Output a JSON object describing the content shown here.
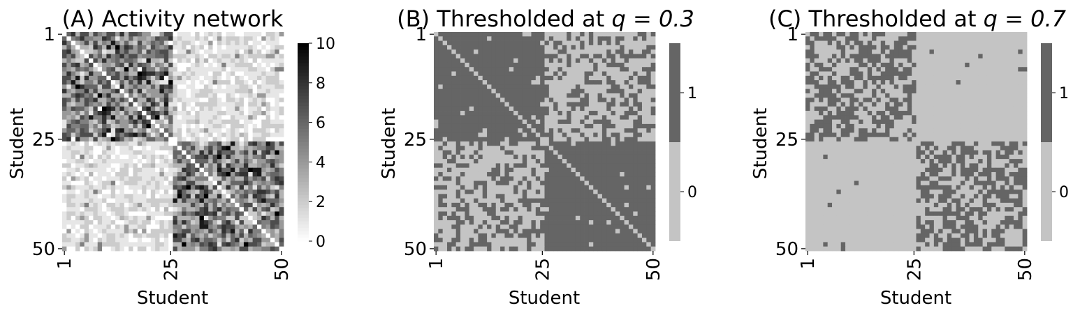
{
  "figure": {
    "background": "#ffffff",
    "n_students": 50,
    "block_split": 25
  },
  "chart_data": [
    {
      "type": "heatmap",
      "id": "A",
      "title": "(A) Activity network",
      "title_math": "",
      "xlabel": "Student",
      "ylabel": "Student",
      "x_ticks": [
        "1",
        "25",
        "50"
      ],
      "y_ticks": [
        "1",
        "25",
        "50"
      ],
      "colormap": "Greys",
      "value_range": [
        0,
        10
      ],
      "colorbar": {
        "ticks": [
          "0",
          "2",
          "4",
          "6",
          "8",
          "10"
        ],
        "tick_values": [
          0,
          2,
          4,
          6,
          8,
          10
        ]
      },
      "description_of_values": "50x50 symmetric matrix; within-block (1-25, 26-50) values mostly 3-8 with peaks up to 10, between-block values mostly 0-2"
    },
    {
      "type": "heatmap",
      "id": "B",
      "title": "(B) Thresholded at ",
      "title_math": "q = 0.3",
      "xlabel": "Student",
      "ylabel": "Student",
      "x_ticks": [
        "1",
        "25",
        "50"
      ],
      "y_ticks": [
        "1",
        "25",
        "50"
      ],
      "threshold_q": 0.3,
      "levels": [
        0,
        1
      ],
      "level_colors": {
        "0": "#c4c4c4",
        "1": "#656565"
      },
      "colorbar": {
        "ticks": [
          "0",
          "1"
        ],
        "tick_values": [
          0,
          1
        ]
      }
    },
    {
      "type": "heatmap",
      "id": "C",
      "title": "(C) Thresholded at ",
      "title_math": "q = 0.7",
      "xlabel": "Student",
      "ylabel": "Student",
      "x_ticks": [
        "1",
        "25",
        "50"
      ],
      "y_ticks": [
        "1",
        "25",
        "50"
      ],
      "threshold_q": 0.7,
      "levels": [
        0,
        1
      ],
      "level_colors": {
        "0": "#c4c4c4",
        "1": "#656565"
      },
      "colorbar": {
        "ticks": [
          "0",
          "1"
        ],
        "tick_values": [
          0,
          1
        ]
      }
    }
  ]
}
